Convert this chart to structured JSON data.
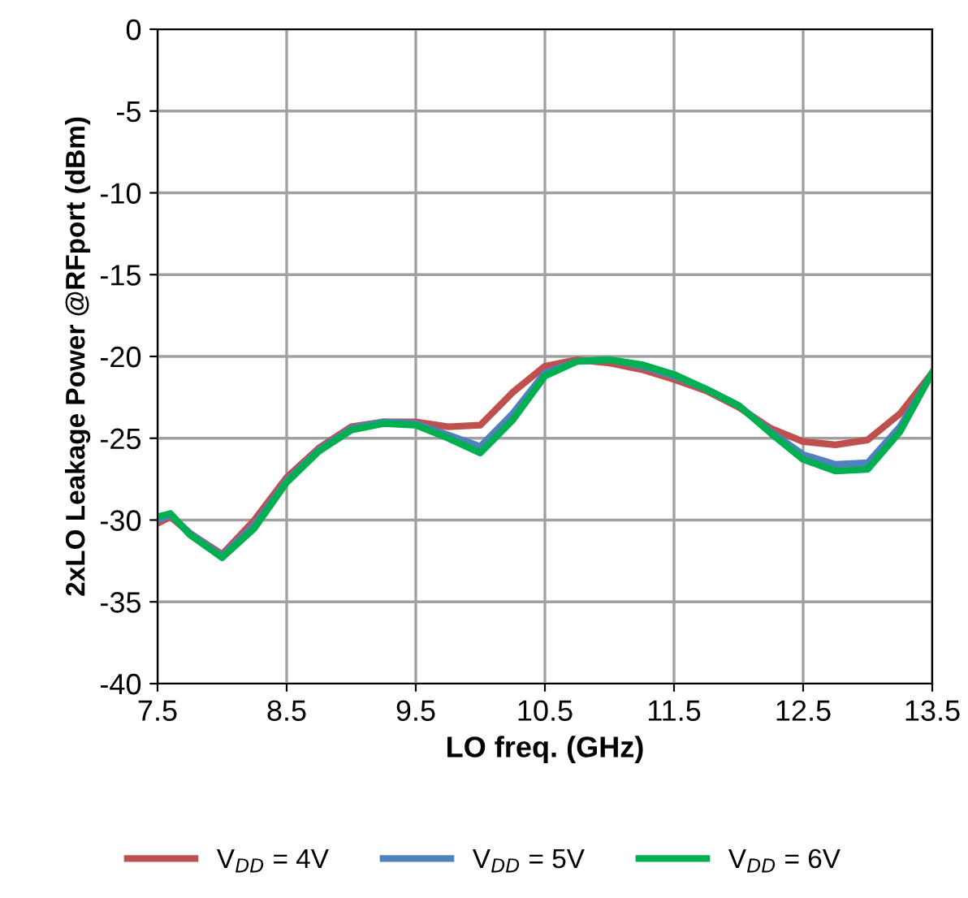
{
  "chart_data": {
    "type": "line",
    "xlabel": "LO freq. (GHz)",
    "ylabel": "2xLO Leakage Power @RFport (dBm)",
    "x": [
      7.5,
      7.6,
      7.75,
      8,
      8.25,
      8.5,
      8.75,
      9,
      9.25,
      9.5,
      9.75,
      10,
      10.25,
      10.5,
      10.75,
      11,
      11.25,
      11.5,
      11.75,
      12,
      12.25,
      12.5,
      12.75,
      13,
      13.25,
      13.5
    ],
    "series": [
      {
        "name": "V$_{DD}$ = 4V",
        "color": "#c0504d",
        "values": [
          -30.2,
          -29.8,
          -30.8,
          -32.1,
          -30.0,
          -27.4,
          -25.6,
          -24.3,
          -24.0,
          -24.0,
          -24.3,
          -24.2,
          -22.2,
          -20.6,
          -20.2,
          -20.4,
          -20.8,
          -21.4,
          -22.1,
          -23.1,
          -24.4,
          -25.2,
          -25.4,
          -25.1,
          -23.5,
          -21.0
        ]
      },
      {
        "name": "V$_{DD}$ = 5V",
        "color": "#4f81bd",
        "values": [
          -30.0,
          -29.7,
          -30.8,
          -32.2,
          -30.3,
          -27.6,
          -25.7,
          -24.4,
          -24.0,
          -24.1,
          -24.8,
          -25.5,
          -23.5,
          -21.0,
          -20.3,
          -20.2,
          -20.6,
          -21.2,
          -22.0,
          -23.0,
          -24.6,
          -26.0,
          -26.6,
          -26.5,
          -24.3,
          -21.0
        ]
      },
      {
        "name": "V$_{DD}$ = 6V",
        "color": "#00b050",
        "values": [
          -29.8,
          -29.6,
          -30.9,
          -32.3,
          -30.5,
          -27.7,
          -25.8,
          -24.5,
          -24.1,
          -24.2,
          -25.0,
          -25.9,
          -23.9,
          -21.2,
          -20.3,
          -20.2,
          -20.5,
          -21.1,
          -22.0,
          -23.0,
          -24.7,
          -26.3,
          -27.0,
          -26.9,
          -24.6,
          -21.0
        ]
      }
    ],
    "xlim": [
      7.5,
      13.5
    ],
    "xticks": [
      7.5,
      8.5,
      9.5,
      10.5,
      11.5,
      12.5,
      13.5
    ],
    "ylim": [
      -40,
      0
    ],
    "yticks": [
      -40,
      -35,
      -30,
      -25,
      -20,
      -15,
      -10,
      -5,
      0
    ],
    "grid": true,
    "legend": "bottom",
    "marker": "none",
    "line_style": "solid"
  }
}
